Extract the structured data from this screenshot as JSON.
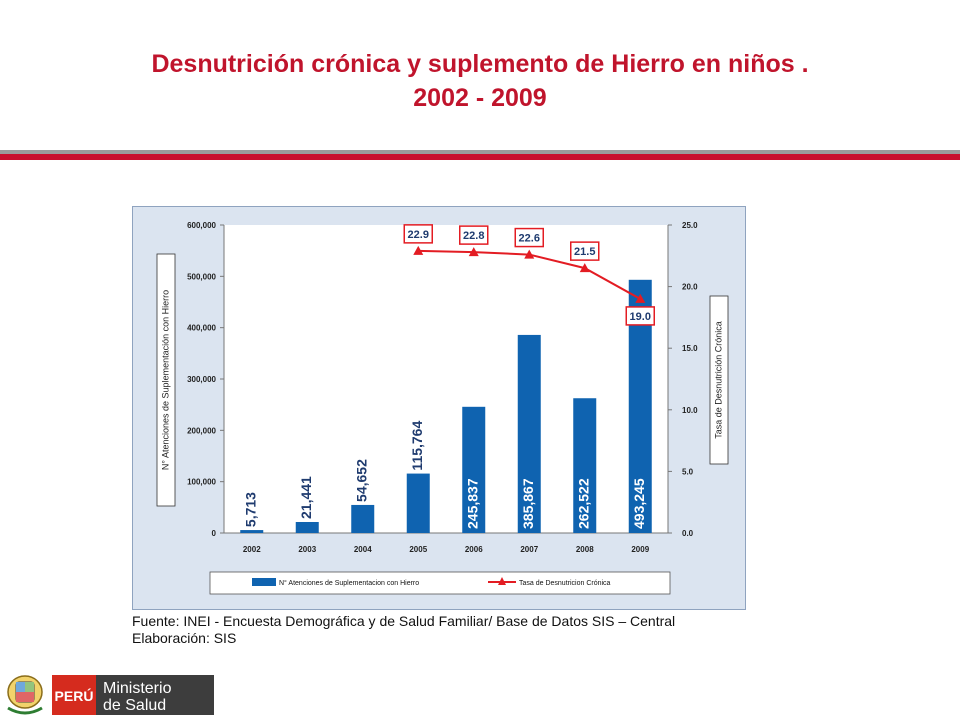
{
  "header": {
    "title_line1": "Desnutrición crónica y suplemento de Hierro en niños .",
    "title_line2": "2002 - 2009"
  },
  "chart_data": {
    "type": "bar",
    "categories": [
      "2002",
      "2003",
      "2004",
      "2005",
      "2006",
      "2007",
      "2008",
      "2009"
    ],
    "series": [
      {
        "name": "N° Atenciones de Suplementacion con Hierro",
        "type": "bar",
        "axis": "left",
        "values": [
          5713,
          21441,
          54652,
          115764,
          245837,
          385867,
          262522,
          493245
        ],
        "labels": [
          "5,713",
          "21,441",
          "54,652",
          "115,764",
          "245,837",
          "385,867",
          "262,522",
          "493,245"
        ],
        "color": "#0f63b0"
      },
      {
        "name": "Tasa de Desnutricion Crónica",
        "type": "line",
        "axis": "right",
        "x": [
          "2005",
          "2006",
          "2007",
          "2008",
          "2009"
        ],
        "values": [
          22.9,
          22.8,
          22.6,
          21.5,
          19.0
        ],
        "labels": [
          "22.9",
          "22.8",
          "22.6",
          "21.5",
          "19.0"
        ],
        "color": "#e31c23"
      }
    ],
    "ylabel": "N° Atenciones de Suplementación con Hierro",
    "y2label": "Tasa de Desnutrición Crónica",
    "ylim": [
      0,
      600000
    ],
    "y2lim": [
      0,
      25
    ],
    "yticks": [
      "0",
      "100,000",
      "200,000",
      "300,000",
      "400,000",
      "500,000",
      "600,000"
    ],
    "y2ticks": [
      "0.0",
      "5.0",
      "10.0",
      "15.0",
      "20.0",
      "25.0"
    ],
    "legend_position": "bottom",
    "grid": false
  },
  "source": {
    "line1": "Fuente: INEI - Encuesta Demográfica y de Salud Familiar/ Base de Datos SIS – Central",
    "line2": "Elaboración: SIS"
  },
  "footer": {
    "peru_label": "PERÚ",
    "ministry_line1": "Ministerio",
    "ministry_line2": "de Salud"
  }
}
